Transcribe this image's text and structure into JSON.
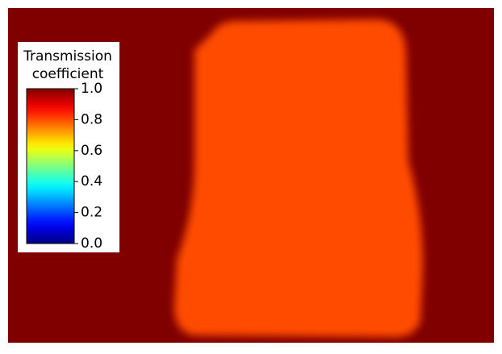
{
  "chart_data": {
    "type": "heatmap",
    "background_value": 1.0,
    "sample_value": 0.8,
    "colorbar": {
      "label": [
        "Transmission",
        "coefficient"
      ],
      "clim": [
        0,
        1
      ],
      "ticks": [
        {
          "value": 0,
          "label": "0.0"
        },
        0.2,
        0.4,
        0.6,
        0.8,
        {
          "value": 1,
          "label": "1.0"
        }
      ],
      "colormap": "jet"
    }
  }
}
